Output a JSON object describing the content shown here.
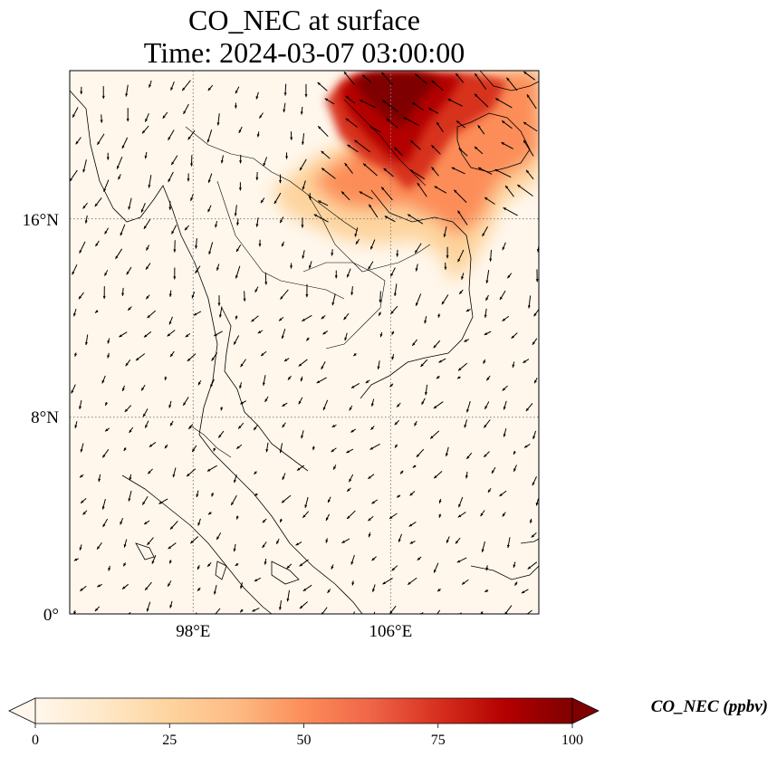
{
  "title": {
    "line1": "CO_NEC at surface",
    "line2": "Time: 2024-03-07 03:00:00"
  },
  "map": {
    "projection": "PlateCarree",
    "extent": {
      "lon_min": 93,
      "lon_max": 112,
      "lat_min": 0,
      "lat_max": 22
    },
    "gridlines": {
      "style": "dotted",
      "color": "#808080"
    },
    "lat_ticks": [
      {
        "value": 0,
        "label": "0°"
      },
      {
        "value": 8,
        "label": "8°N"
      },
      {
        "value": 16,
        "label": "16°N"
      }
    ],
    "lon_ticks": [
      {
        "value": 98,
        "label": "98°E"
      },
      {
        "value": 106,
        "label": "106°E"
      }
    ],
    "field": "CO_NEC",
    "plume_region": "northern Vietnam / Laos / Gulf of Tonkin, lat ~14–22°N, lon ~102–111°E",
    "plume_max_ppbv": 100,
    "wind_vectors": "shown as black quiver arrows across the domain"
  },
  "colorbar": {
    "label": "CO_NEC (ppbv)",
    "ticks": [
      {
        "value": 0,
        "label": "0"
      },
      {
        "value": 25,
        "label": "25"
      },
      {
        "value": 50,
        "label": "50"
      },
      {
        "value": 75,
        "label": "75"
      },
      {
        "value": 100,
        "label": "100"
      }
    ],
    "min": 0,
    "max": 100,
    "extend": "both",
    "colormap": "OrRd",
    "colors": [
      "#fff7ec",
      "#fee8c8",
      "#fdd49e",
      "#fdbb84",
      "#fc8d59",
      "#ef6548",
      "#d7301f",
      "#b30000",
      "#7f0000"
    ]
  }
}
